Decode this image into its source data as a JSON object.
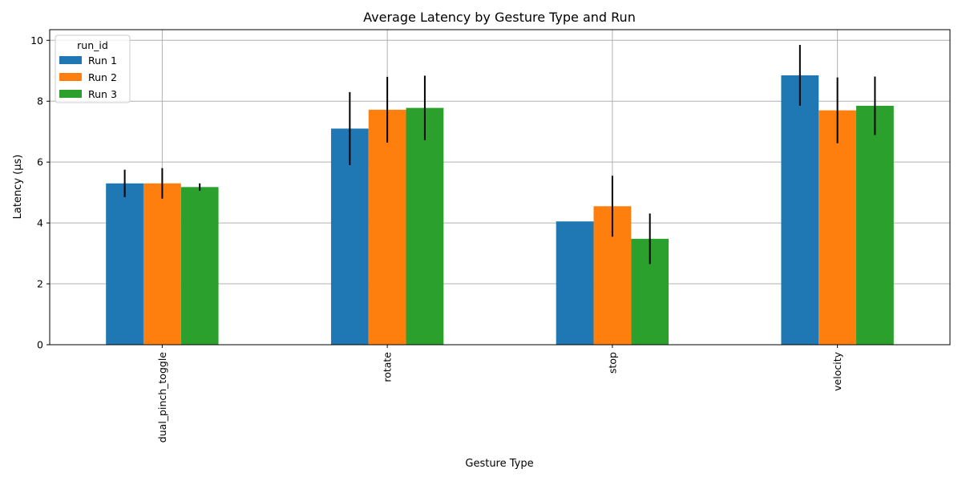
{
  "chart_data": {
    "type": "bar",
    "title": "Average Latency by Gesture Type and Run",
    "xlabel": "Gesture Type",
    "ylabel": "Latency (μs)",
    "categories": [
      "dual_pinch_toggle",
      "rotate",
      "stop",
      "velocity"
    ],
    "series": [
      {
        "name": "Run 1",
        "color": "#1f77b4",
        "values": [
          5.3,
          7.1,
          4.05,
          8.85
        ],
        "errors": [
          0.45,
          1.2,
          0.0,
          1.0
        ]
      },
      {
        "name": "Run 2",
        "color": "#ff7f0e",
        "values": [
          5.3,
          7.72,
          4.55,
          7.7
        ],
        "errors": [
          0.5,
          1.08,
          1.0,
          1.08
        ]
      },
      {
        "name": "Run 3",
        "color": "#2ca02c",
        "values": [
          5.18,
          7.78,
          3.48,
          7.85
        ],
        "errors": [
          0.12,
          1.06,
          0.83,
          0.96
        ]
      }
    ],
    "ylim": [
      0,
      10.35
    ],
    "yticks": [
      0,
      2,
      4,
      6,
      8,
      10
    ],
    "grid": true,
    "legend": {
      "title": "run_id",
      "position": "top-left"
    }
  }
}
